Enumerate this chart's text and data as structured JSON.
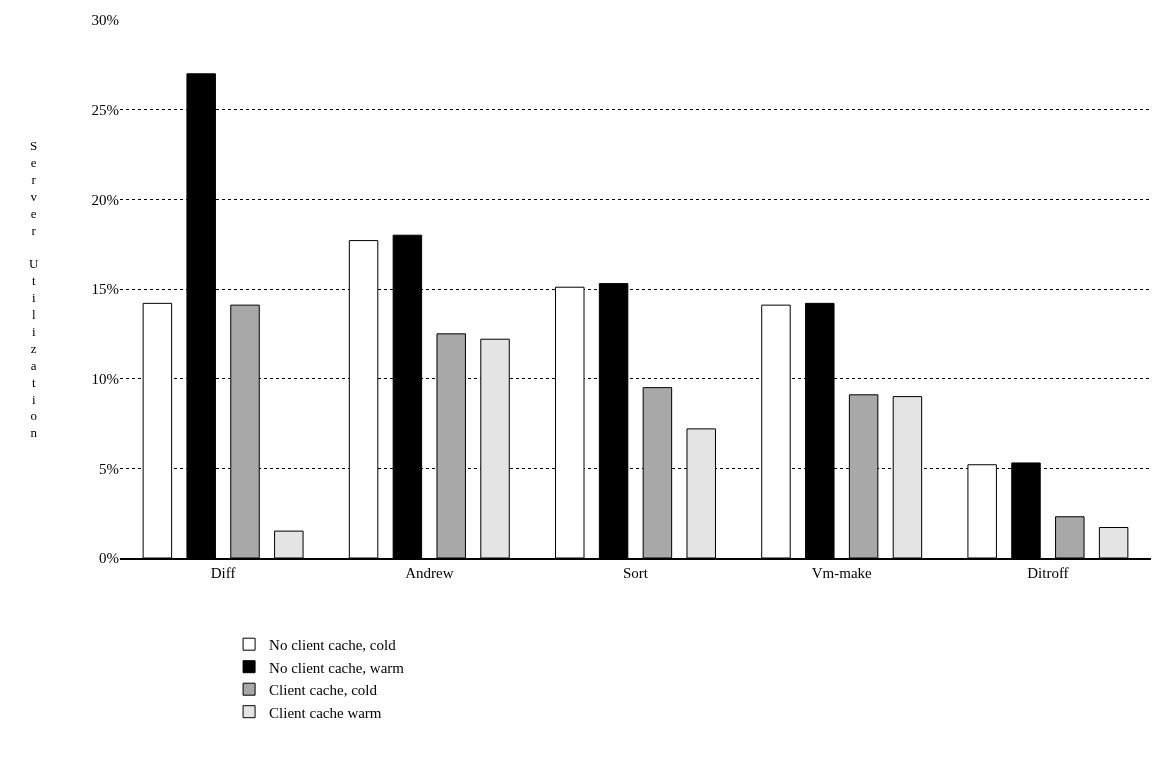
{
  "chart_data": {
    "type": "bar",
    "ylabel": "Server Utilization",
    "categories": [
      "Diff",
      "Andrew",
      "Sort",
      "Vm-make",
      "Ditroff"
    ],
    "series": [
      {
        "name": "No client cache, cold",
        "color": "#ffffff",
        "values": [
          14.2,
          17.7,
          15.1,
          14.1,
          5.2
        ]
      },
      {
        "name": "No client cache, warm",
        "color": "#000000",
        "values": [
          27.0,
          18.0,
          15.3,
          14.2,
          5.3
        ]
      },
      {
        "name": "Client cache, cold",
        "color": "#a8a8a8",
        "values": [
          14.1,
          12.5,
          9.5,
          9.1,
          2.3
        ]
      },
      {
        "name": "Client cache warm",
        "color": "#e4e4e4",
        "values": [
          1.5,
          12.2,
          7.2,
          9.0,
          1.7
        ]
      }
    ],
    "ylim": [
      0,
      30
    ],
    "yticks": [
      {
        "value": 0,
        "label": "0%"
      },
      {
        "value": 5,
        "label": "5%"
      },
      {
        "value": 10,
        "label": "10%"
      },
      {
        "value": 15,
        "label": "15%"
      },
      {
        "value": 20,
        "label": "20%"
      },
      {
        "value": 25,
        "label": "25%"
      },
      {
        "value": 30,
        "label": "30%"
      }
    ],
    "grid": "y",
    "legend": "bottom"
  }
}
